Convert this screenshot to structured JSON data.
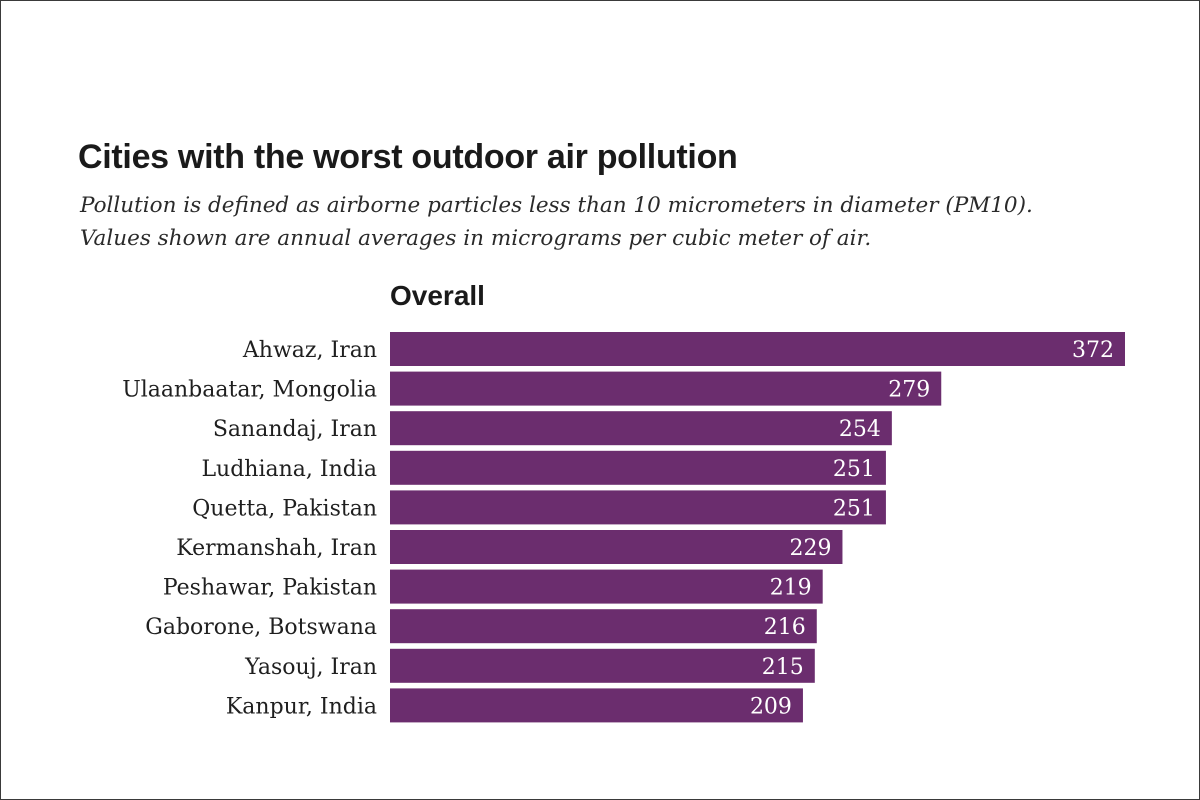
{
  "chart_data": {
    "type": "bar",
    "orientation": "horizontal",
    "title": "Cities with the worst outdoor air pollution",
    "subtitle": [
      "Pollution is defined as airborne particles less than 10 micrometers in diameter (PM10).",
      "Values shown are annual averages in micrograms per cubic meter of air."
    ],
    "panel_title": "Overall",
    "categories": [
      "Ahwaz, Iran",
      "Ulaanbaatar, Mongolia",
      "Sanandaj, Iran",
      "Ludhiana, India",
      "Quetta, Pakistan",
      "Kermanshah, Iran",
      "Peshawar, Pakistan",
      "Gaborone, Botswana",
      "Yasouj, Iran",
      "Kanpur, India"
    ],
    "values": [
      372,
      279,
      254,
      251,
      251,
      229,
      219,
      216,
      215,
      209
    ],
    "xlim": [
      0,
      372
    ],
    "grid": false,
    "legend": "none",
    "bar_color": "#6b2d6e",
    "value_label_color": "#ffffff"
  }
}
